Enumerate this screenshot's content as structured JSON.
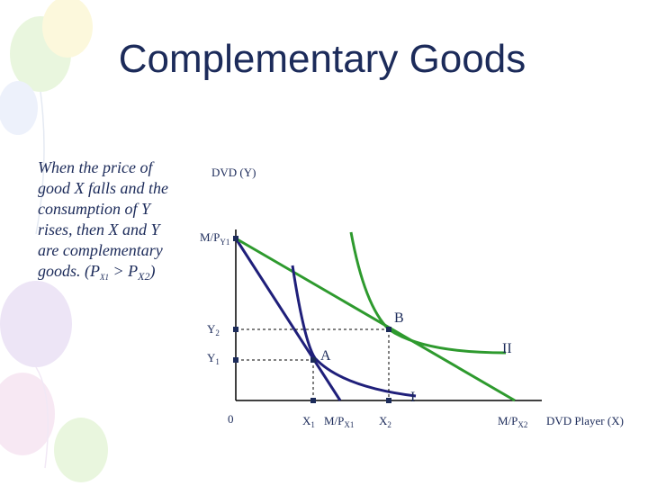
{
  "title": "Complementary Goods",
  "body": {
    "lines": [
      "When the price of",
      "good X falls and the",
      "consumption of Y",
      "rises, then X and Y",
      "are complementary"
    ],
    "last_line": {
      "start": "goods. (P",
      "sub1": "X1",
      "middle": " > P",
      "sub2": "X2",
      "end": ")"
    }
  },
  "diagram": {
    "y_axis_label": "DVD (Y)",
    "x_axis_label": "DVD Player (X)",
    "origin_label": "0",
    "y_intercept": {
      "text": "M/P",
      "sub": "Y1"
    },
    "y2": {
      "text": "Y",
      "sub": "2"
    },
    "y1": {
      "text": "Y",
      "sub": "1"
    },
    "x1": {
      "text": "X",
      "sub": "1"
    },
    "x2": {
      "text": "X",
      "sub": "2"
    },
    "x_intercept_1": {
      "text": "M/P",
      "sub": "X1"
    },
    "x_intercept_2": {
      "text": "M/P",
      "sub": "X2"
    },
    "point_a": "A",
    "point_b": "B",
    "curve_1": "I",
    "curve_2": "II"
  }
}
